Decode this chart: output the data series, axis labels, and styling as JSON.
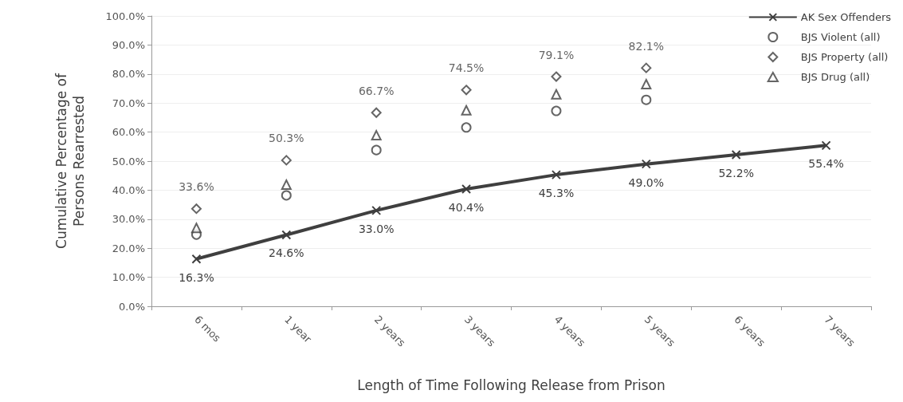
{
  "chart_data": {
    "type": "line",
    "xlabel": "Length of Time Following Release from Prison",
    "ylabel": "Cumulative Percentage of\nPersons Rearrested",
    "categories": [
      "6 mos",
      "1 year",
      "2 years",
      "3 years",
      "4 years",
      "5 years",
      "6 years",
      "7 years"
    ],
    "series": [
      {
        "name": "AK Sex Offenders",
        "color": "#3f3f3f",
        "marker": "cross",
        "values": [
          16.3,
          24.6,
          33.0,
          40.4,
          45.3,
          49.0,
          52.2,
          55.4
        ],
        "value_labels": [
          "16.3%",
          "24.6%",
          "33.0%",
          "40.4%",
          "45.3%",
          "49.0%",
          "52.2%",
          "55.4%"
        ]
      },
      {
        "name": "BJS Violent (all)",
        "type": "scatter",
        "color": "#3f3f3f",
        "marker": "circle",
        "values": [
          24.7,
          38.2,
          53.8,
          61.6,
          67.3,
          71.1,
          null,
          null
        ]
      },
      {
        "name": "BJS Property (all)",
        "type": "scatter",
        "color": "#3f3f3f",
        "marker": "diamond",
        "values": [
          33.6,
          50.3,
          66.7,
          74.5,
          79.1,
          82.1,
          null,
          null
        ],
        "value_labels": [
          "33.6%",
          "50.3%",
          "66.7%",
          "74.5%",
          "79.1%",
          "82.1%",
          null,
          null
        ]
      },
      {
        "name": "BJS Drug (all)",
        "type": "scatter",
        "color": "#3f3f3f",
        "marker": "triangle",
        "values": [
          27.0,
          41.9,
          58.9,
          67.5,
          73.0,
          76.5,
          null,
          null
        ]
      }
    ],
    "ylim": [
      0,
      100
    ],
    "yticks": [
      {
        "value": 0,
        "label": "0.0%"
      },
      {
        "value": 10,
        "label": "10.0%"
      },
      {
        "value": 20,
        "label": "20.0%"
      },
      {
        "value": 30,
        "label": "30.0%"
      },
      {
        "value": 40,
        "label": "40.0%"
      },
      {
        "value": 50,
        "label": "50.0%"
      },
      {
        "value": 60,
        "label": "60.0%"
      },
      {
        "value": 70,
        "label": "70.0%"
      },
      {
        "value": 80,
        "label": "80.0%"
      },
      {
        "value": 90,
        "label": "90.0%"
      },
      {
        "value": 100,
        "label": "100.0%"
      }
    ],
    "grid": "y",
    "legend": "top right"
  }
}
